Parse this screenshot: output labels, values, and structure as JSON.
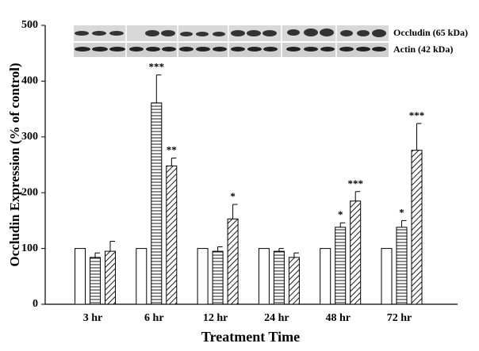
{
  "chart_data": {
    "type": "bar",
    "y_label": "Occludin Expression (% of control)",
    "x_label": "Treatment Time",
    "blot_labels": [
      "Occludin (65 kDa)",
      "Actin (42 kDa)"
    ],
    "categories": [
      "3 hr",
      "6 hr",
      "12 hr",
      "24 hr",
      "48 hr",
      "72 hr"
    ],
    "series": [
      {
        "pattern": "none",
        "color": "#000000",
        "values": [
          100,
          100,
          100,
          100,
          100,
          100
        ]
      },
      {
        "pattern": "horizontal",
        "color": "#000000",
        "values": [
          84,
          361,
          95,
          95,
          138,
          138
        ],
        "errors": [
          8,
          50,
          8,
          5,
          8,
          12
        ],
        "significance": [
          null,
          "***",
          null,
          null,
          "*",
          "*"
        ]
      },
      {
        "pattern": "diagonal",
        "color": "#000000",
        "values": [
          95,
          248,
          153,
          84,
          185,
          276
        ],
        "errors": [
          18,
          14,
          26,
          8,
          17,
          48
        ],
        "significance": [
          null,
          "**",
          "*",
          null,
          "***",
          "***"
        ]
      }
    ],
    "ylim": [
      0,
      500
    ],
    "yticks": [
      0,
      100,
      200,
      300,
      400,
      500
    ]
  }
}
